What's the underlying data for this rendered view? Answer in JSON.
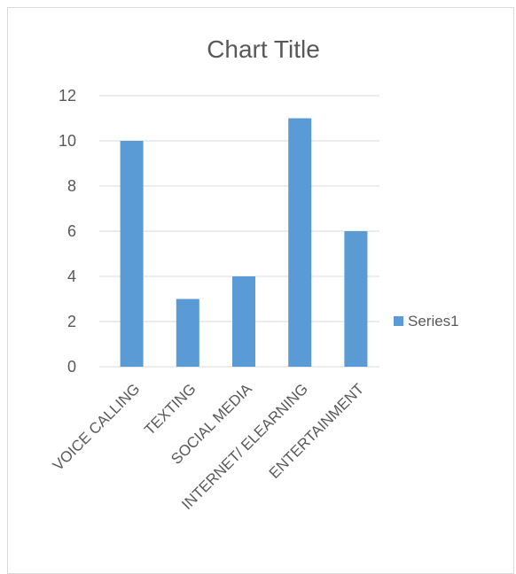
{
  "chart_data": {
    "type": "bar",
    "title": "Chart Title",
    "categories": [
      "VOICE CALLING",
      "TEXTING",
      "SOCIAL MEDIA",
      "INTERNET/ ELEARNING",
      "ENTERTAINMENT"
    ],
    "series": [
      {
        "name": "Series1",
        "values": [
          10,
          3,
          4,
          11,
          6
        ],
        "color": "#5b9bd5"
      }
    ],
    "yticks": [
      0,
      2,
      4,
      6,
      8,
      10,
      12
    ],
    "ylim": [
      0,
      12
    ],
    "grid": true,
    "legend": "right",
    "gridColor": "#d9d9d9",
    "textColor": "#595959"
  }
}
